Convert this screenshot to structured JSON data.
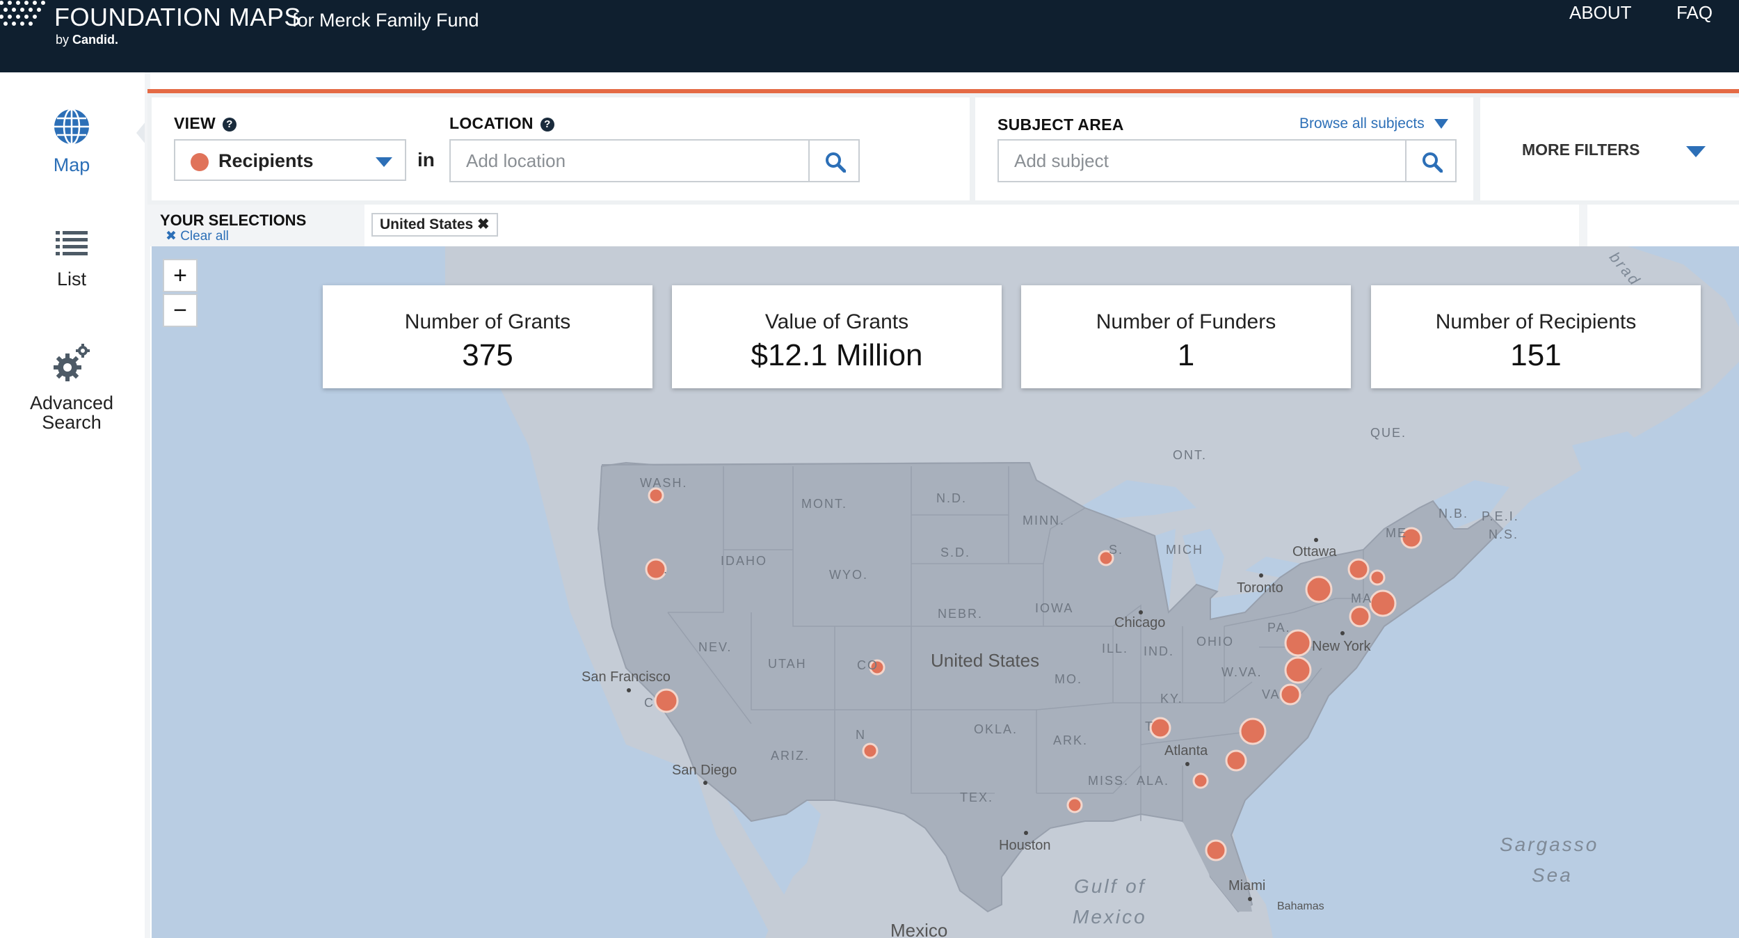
{
  "header": {
    "brand": "FOUNDATION MAPS",
    "brand_subtitle": "for Merck Family Fund",
    "byline_prefix": "by",
    "byline_name": "Candid.",
    "nav": {
      "about": "ABOUT",
      "faq": "FAQ"
    }
  },
  "sidebar": {
    "map": "Map",
    "list": "List",
    "advanced_line1": "Advanced",
    "advanced_line2": "Search"
  },
  "filters": {
    "view_label": "VIEW",
    "view_selected": "Recipients",
    "in_text": "in",
    "location_label": "LOCATION",
    "location_placeholder": "Add location",
    "subject_label": "SUBJECT AREA",
    "browse_subjects": "Browse all subjects",
    "subject_placeholder": "Add subject",
    "more_filters": "MORE FILTERS",
    "help_glyph": "?"
  },
  "selections": {
    "title": "YOUR SELECTIONS",
    "clear_all": "Clear all",
    "tag": "United States"
  },
  "stats": [
    {
      "label": "Number of Grants",
      "value": "375"
    },
    {
      "label": "Value of Grants",
      "value": "$12.1 Million"
    },
    {
      "label": "Number of Funders",
      "value": "1"
    },
    {
      "label": "Number of Recipients",
      "value": "151"
    }
  ],
  "zoom": {
    "in": "+",
    "out": "−"
  },
  "map": {
    "country": "United States",
    "regions": {
      "wash": "WASH.",
      "mont": "MONT.",
      "nd": "N.D.",
      "minn": "MINN.",
      "idaho": "IDAHO",
      "wyo": "WYO.",
      "sd": "S.D.",
      "iowa": "IOWA",
      "nebr": "NEBR.",
      "nev": "NEV.",
      "utah": "UTAH",
      "colo": "CO",
      "mo": "MO.",
      "ky": "KY.",
      "okla": "OKLA.",
      "ark": "ARK.",
      "ariz": "ARIZ.",
      "tex": "TEX.",
      "miss": "MISS.",
      "ala": "ALA.",
      "tenn": "T",
      "pa": "PA.",
      "ohio": "OHIO",
      "wva": "W.VA.",
      "ill": "ILL.",
      "ind": "IND.",
      "mich": "MICH",
      "va": "VA",
      "ont": "ONT.",
      "que": "QUE.",
      "nb": "N.B.",
      "pei": "P.E.I.",
      "ns": "N.S.",
      "wis": "S.",
      "nm": "N",
      "me": "ME",
      "ma": "MA",
      "calif": "C",
      "ore": "."
    },
    "cities": {
      "ottawa": "Ottawa",
      "toronto": "Toronto",
      "chicago": "Chicago",
      "new_york": "New York",
      "atlanta": "Atlanta",
      "san_francisco": "San Francisco",
      "san_diego": "San Diego",
      "houston": "Houston",
      "miami": "Miami",
      "bahamas": "Bahamas"
    },
    "water": {
      "sargasso1": "Sargasso",
      "sargasso2": "Sea",
      "gulf1": "Gulf of",
      "gulf2": "Mexico",
      "labrador": "brad"
    },
    "mexico": "Mexico",
    "colors": {
      "land": "#c5ccd6",
      "us_land": "#a8b0bc",
      "water": "#b9cde3",
      "marker": "#e0735a",
      "marker_stroke": "#f3d6cc"
    }
  }
}
